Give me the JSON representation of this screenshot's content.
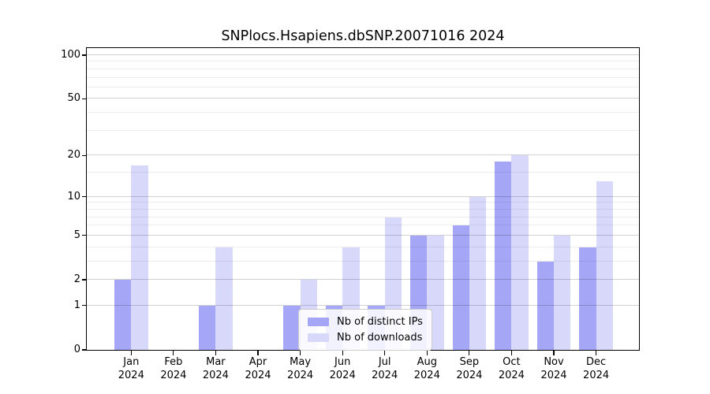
{
  "title": "SNPlocs.Hsapiens.dbSNP.20071016 2024",
  "colors": {
    "distinct_ips_bar": "#a6a6f6",
    "downloads_bar": "#d8d8fa",
    "grid_major": "rgba(0,0,0,0.18)",
    "grid_minor": "rgba(0,0,0,0.07)",
    "axis_line": "#000000",
    "legend_border": "#cccccc",
    "legend_background": "rgba(255,255,255,0.85)"
  },
  "chart_data": {
    "type": "bar",
    "title": "SNPlocs.Hsapiens.dbSNP.20071016 2024",
    "categories": [
      "Jan 2024",
      "Feb 2024",
      "Mar 2024",
      "Apr 2024",
      "May 2024",
      "Jun 2024",
      "Jul 2024",
      "Aug 2024",
      "Sep 2024",
      "Oct 2024",
      "Nov 2024",
      "Dec 2024"
    ],
    "series": [
      {
        "name": "Nb of distinct IPs",
        "values": [
          2,
          0,
          1,
          0,
          1,
          1,
          1,
          5,
          6,
          18,
          3,
          4
        ]
      },
      {
        "name": "Nb of downloads",
        "values": [
          17,
          0,
          4,
          0,
          2,
          4,
          7,
          5,
          10,
          20,
          5,
          13
        ]
      }
    ],
    "xlabel": "",
    "ylabel": "",
    "y_scale": "log10(1+y)",
    "y_major_ticks": [
      0,
      1,
      2,
      5,
      10,
      20,
      50,
      100
    ],
    "y_minor_ticks": [
      3,
      4,
      6,
      7,
      8,
      9,
      15,
      30,
      40,
      60,
      70,
      80,
      90
    ],
    "ylim": [
      0,
      101
    ],
    "grid": "horizontal",
    "legend_position": "inside lower center"
  }
}
